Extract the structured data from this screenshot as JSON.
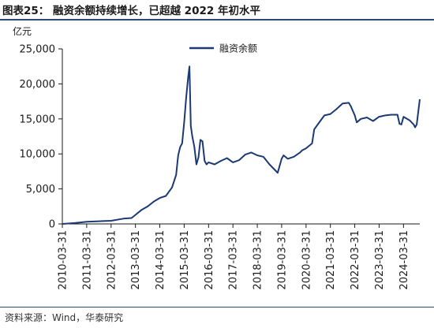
{
  "title": "图表25：  融资余额持续增长，已超越 2022 年初水平",
  "source": "资料来源：Wind，华泰研究",
  "colors": {
    "series": "#1b3a73",
    "axis": "#1a1a1a",
    "rule": "#2b4a7a"
  },
  "chart_data": {
    "type": "line",
    "ylabel": "亿元",
    "ylim": [
      0,
      25000
    ],
    "yticks": [
      0,
      5000,
      10000,
      15000,
      20000,
      25000
    ],
    "ytick_labels": [
      "0",
      "5,000",
      "10,000",
      "15,000",
      "20,000",
      "25,000"
    ],
    "xlim": [
      "2010-03-31",
      "2024-11-30"
    ],
    "xtick_labels": [
      "2010-03-31",
      "2011-03-31",
      "2012-03-31",
      "2013-03-31",
      "2014-03-31",
      "2015-03-31",
      "2016-03-31",
      "2017-03-31",
      "2018-03-31",
      "2019-03-31",
      "2020-03-31",
      "2021-03-31",
      "2022-03-31",
      "2023-03-31",
      "2024-03-31"
    ],
    "grid": false,
    "legend_position": "top-center",
    "series": [
      {
        "name": "融资余额",
        "x": [
          "2010-03-31",
          "2010-09-30",
          "2011-03-31",
          "2011-09-30",
          "2012-03-31",
          "2012-09-30",
          "2013-01-31",
          "2013-03-31",
          "2013-06-30",
          "2013-09-30",
          "2013-12-31",
          "2014-03-31",
          "2014-06-30",
          "2014-09-30",
          "2014-11-30",
          "2014-12-31",
          "2015-01-31",
          "2015-02-28",
          "2015-03-31",
          "2015-04-30",
          "2015-05-31",
          "2015-06-18",
          "2015-07-08",
          "2015-07-31",
          "2015-08-31",
          "2015-09-30",
          "2015-10-31",
          "2015-11-30",
          "2015-12-31",
          "2016-01-31",
          "2016-02-29",
          "2016-03-31",
          "2016-06-30",
          "2016-09-30",
          "2016-12-31",
          "2017-03-31",
          "2017-06-30",
          "2017-09-30",
          "2017-12-31",
          "2018-03-31",
          "2018-06-30",
          "2018-09-30",
          "2018-12-31",
          "2019-01-31",
          "2019-03-31",
          "2019-04-30",
          "2019-06-30",
          "2019-09-30",
          "2019-12-31",
          "2020-01-31",
          "2020-03-31",
          "2020-06-30",
          "2020-07-31",
          "2020-09-30",
          "2020-12-31",
          "2021-03-31",
          "2021-06-30",
          "2021-09-30",
          "2021-12-31",
          "2022-01-31",
          "2022-03-31",
          "2022-04-30",
          "2022-06-30",
          "2022-09-30",
          "2022-12-31",
          "2023-03-31",
          "2023-06-30",
          "2023-09-30",
          "2023-12-31",
          "2024-01-31",
          "2024-02-29",
          "2024-03-31",
          "2024-06-30",
          "2024-08-31",
          "2024-09-20",
          "2024-10-15",
          "2024-11-30"
        ],
        "values": [
          0,
          120,
          300,
          380,
          450,
          750,
          850,
          1300,
          2000,
          2500,
          3200,
          3700,
          4000,
          5200,
          7000,
          9800,
          11000,
          11500,
          14500,
          18000,
          21000,
          22500,
          14000,
          12500,
          11000,
          8500,
          9500,
          12000,
          11800,
          9000,
          8500,
          8800,
          8500,
          9000,
          9400,
          8800,
          9100,
          9900,
          10200,
          9800,
          9600,
          8500,
          7600,
          7300,
          9300,
          9800,
          9300,
          9600,
          10200,
          10500,
          10800,
          11500,
          13500,
          14300,
          15500,
          15700,
          16400,
          17200,
          17300,
          16800,
          15500,
          14500,
          15000,
          15200,
          14700,
          15300,
          15500,
          15600,
          15600,
          14300,
          14200,
          15300,
          14800,
          14200,
          13800,
          14200,
          17800
        ]
      }
    ]
  }
}
